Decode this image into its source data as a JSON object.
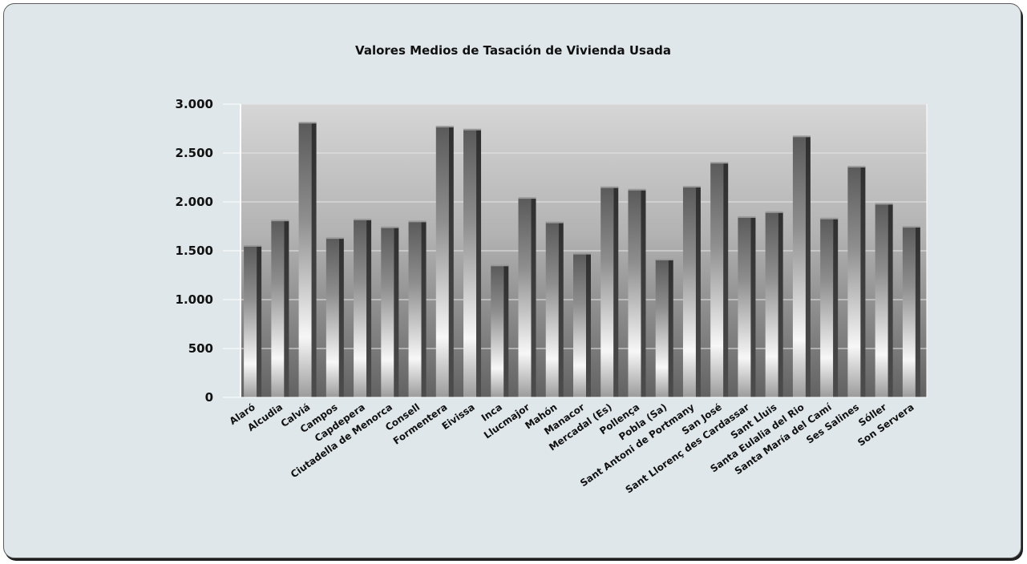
{
  "chart_data": {
    "type": "bar",
    "title": "Valores Medios de Tasación de Vivienda Usada",
    "xlabel": "",
    "ylabel": "",
    "ylim": [
      0,
      3000
    ],
    "yticks": [
      0,
      500,
      1000,
      1500,
      2000,
      2500,
      3000
    ],
    "ytick_labels": [
      "0",
      "500",
      "1.000",
      "1.500",
      "2.000",
      "2.500",
      "3.000"
    ],
    "grid": true,
    "legend": "none",
    "categories": [
      "Alaró",
      "Alcudia",
      "Calviá",
      "Campos",
      "Capdepera",
      "Ciutadella de Menorca",
      "Consell",
      "Formentera",
      "Eivissa",
      "Inca",
      "Llucmajor",
      "Mahón",
      "Manacor",
      "Mercadal (Es)",
      "Pollença",
      "Pobla (Sa)",
      "Sant Antoni de Portmany",
      "San José",
      "Sant Llorenç des Cardassar",
      "Sant Lluis",
      "Santa Eulalia del Rio",
      "Santa María del Camí",
      "Ses Salines",
      "Sóller",
      "Son Servera"
    ],
    "values": [
      1550,
      1810,
      2810,
      1630,
      1820,
      1740,
      1800,
      2770,
      2740,
      1350,
      2040,
      1790,
      1470,
      2150,
      2125,
      1410,
      2155,
      2400,
      1845,
      1895,
      2670,
      1830,
      2360,
      1980,
      1745
    ],
    "colors": {
      "background": "#dfe7ea",
      "plot_top": "#cfcfcf",
      "plot_bottom": "#6f6f6f",
      "bar_light": "#ffffff",
      "bar_dark": "#4a4a4a"
    }
  }
}
